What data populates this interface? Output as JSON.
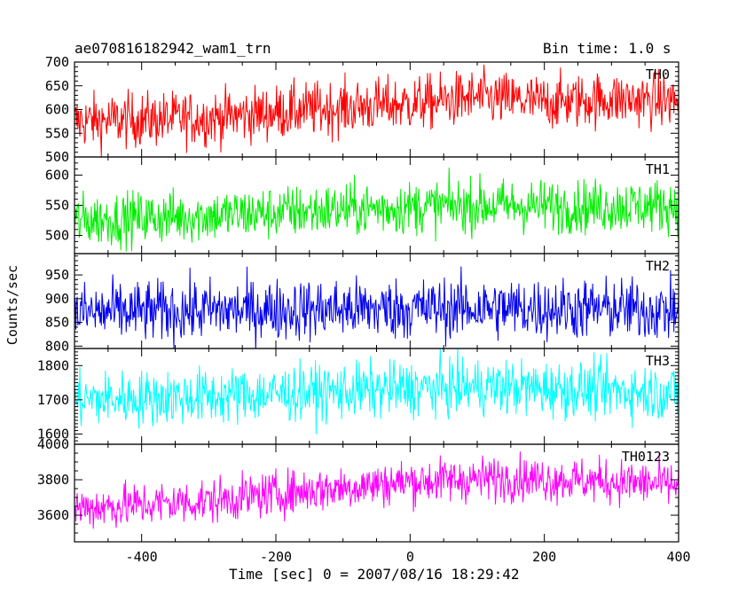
{
  "header": {
    "title": "ae070816182942_wam1_trn",
    "bin_time": "Bin time: 1.0 s"
  },
  "axes": {
    "xlabel": "Time [sec] 0 = 2007/08/16 18:29:42",
    "ylabel": "Counts/sec"
  },
  "chart_data": {
    "type": "line",
    "title": "ae070816182942_wam1_trn",
    "xlabel": "Time [sec] 0 = 2007/08/16 18:29:42",
    "ylabel": "Counts/sec",
    "xlim": [
      -500,
      400
    ],
    "x_ticks": [
      -400,
      -200,
      0,
      200,
      400
    ],
    "x_step": 1.0,
    "panels": [
      {
        "name": "TH0",
        "color": "#ff0000",
        "ylim": [
          500,
          700
        ],
        "y_ticks": [
          500,
          550,
          600,
          650,
          700
        ],
        "trend": [
          [
            -500,
            575
          ],
          [
            -300,
            582
          ],
          [
            -150,
            600
          ],
          [
            0,
            612
          ],
          [
            100,
            625
          ],
          [
            200,
            615
          ],
          [
            300,
            622
          ],
          [
            400,
            618
          ]
        ],
        "noise": 55
      },
      {
        "name": "TH1",
        "color": "#00ee00",
        "ylim": [
          470,
          630
        ],
        "y_ticks": [
          500,
          550,
          600
        ],
        "trend": [
          [
            -500,
            525
          ],
          [
            -300,
            533
          ],
          [
            -100,
            543
          ],
          [
            100,
            550
          ],
          [
            250,
            548
          ],
          [
            400,
            550
          ]
        ],
        "noise": 42
      },
      {
        "name": "TH2",
        "color": "#0000ee",
        "ylim": [
          795,
          995
        ],
        "y_ticks": [
          800,
          850,
          900,
          950
        ],
        "trend": [
          [
            -500,
            870
          ],
          [
            -300,
            875
          ],
          [
            -100,
            878
          ],
          [
            100,
            880
          ],
          [
            300,
            878
          ],
          [
            400,
            875
          ]
        ],
        "noise": 62
      },
      {
        "name": "TH3",
        "color": "#00ffff",
        "ylim": [
          1570,
          1850
        ],
        "y_ticks": [
          1600,
          1700,
          1800
        ],
        "trend": [
          [
            -500,
            1700
          ],
          [
            -300,
            1710
          ],
          [
            -100,
            1725
          ],
          [
            100,
            1738
          ],
          [
            300,
            1728
          ],
          [
            400,
            1720
          ]
        ],
        "noise": 78
      },
      {
        "name": "TH0123",
        "color": "#ff00ff",
        "ylim": [
          3450,
          4000
        ],
        "y_ticks": [
          3600,
          3800,
          4000
        ],
        "trend": [
          [
            -500,
            3640
          ],
          [
            -300,
            3680
          ],
          [
            -150,
            3740
          ],
          [
            0,
            3790
          ],
          [
            150,
            3810
          ],
          [
            300,
            3790
          ],
          [
            400,
            3770
          ]
        ],
        "noise": 120
      }
    ]
  }
}
